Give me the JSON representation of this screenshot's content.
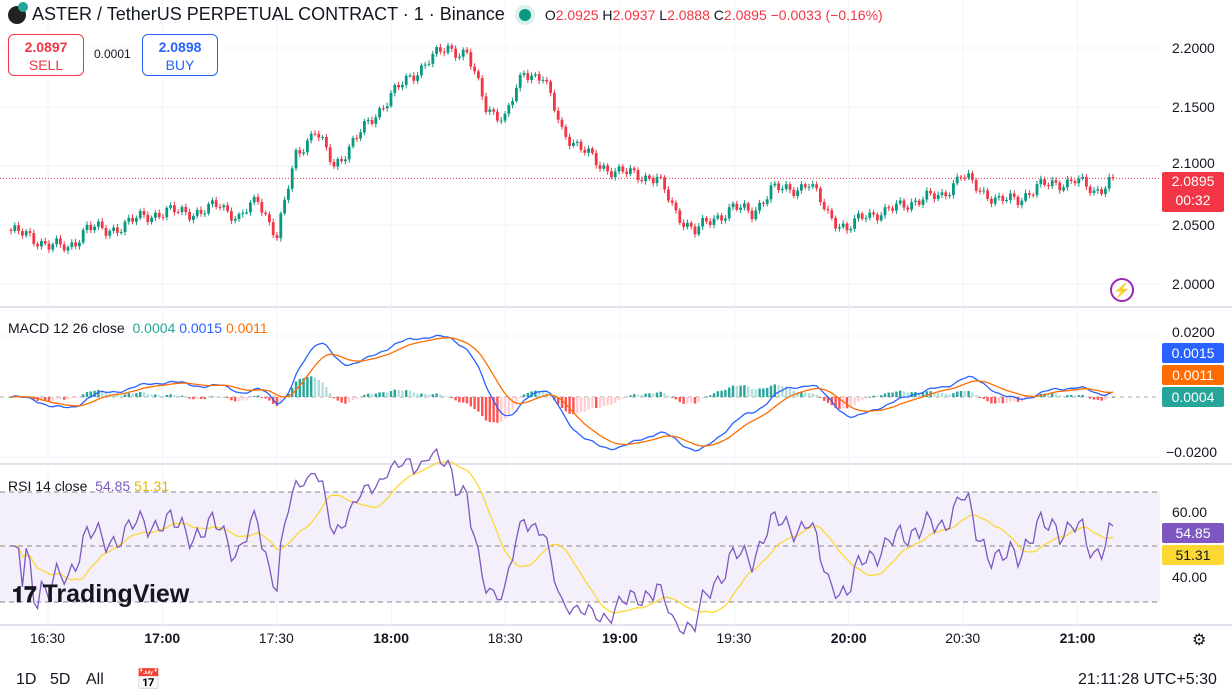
{
  "header": {
    "symbol": "ASTER / TetherUS PERPETUAL CONTRACT · 1 · Binance",
    "o_label": "O",
    "o": "2.0925",
    "h_label": "H",
    "h": "2.0937",
    "l_label": "L",
    "l": "2.0888",
    "c_label": "C",
    "c": "2.0895",
    "change": "−0.0033 (−0.16%)"
  },
  "trade": {
    "sell_price": "2.0897",
    "sell_label": "SELL",
    "spread": "0.0001",
    "buy_price": "2.0898",
    "buy_label": "BUY"
  },
  "price_badge": {
    "price": "2.0895",
    "countdown": "00:32"
  },
  "macd_legend": {
    "name": "MACD 12 26 close",
    "hist": "0.0004",
    "macd": "0.0015",
    "signal": "0.0011"
  },
  "rsi_legend": {
    "name": "RSI 14 close",
    "rsi": "54.85",
    "ma": "51.31"
  },
  "watermark": "TradingView",
  "bottom": {
    "r1": "1D",
    "r2": "5D",
    "r3": "All",
    "clock": "21:11:28 UTC+5:30"
  },
  "colors": {
    "up": "#089981",
    "down": "#f23645",
    "macd": "#2962ff",
    "signal": "#ff6d00",
    "rsi": "#7e57c2",
    "rsi_ma": "#fdd835"
  },
  "chart_data": {
    "type": "candlestick",
    "title": "ASTER / TetherUS PERPETUAL CONTRACT · 1 · Binance",
    "price_ticks": [
      "2.2000",
      "2.1500",
      "2.1000",
      "2.0500",
      "2.0000"
    ],
    "price_ylim": [
      2.0,
      2.2
    ],
    "macd_ticks": [
      "0.0200",
      "−0.0200"
    ],
    "rsi_ticks": [
      "60.00",
      "40.00"
    ],
    "x_ticks": [
      "16:30",
      "17:00",
      "17:30",
      "18:00",
      "18:30",
      "19:00",
      "19:30",
      "20:00",
      "20:30",
      "21:00"
    ],
    "x_start": "16:20",
    "x_step_min": 5,
    "closes_5min": [
      2.045,
      2.04,
      2.033,
      2.03,
      2.048,
      2.045,
      2.05,
      2.058,
      2.06,
      2.062,
      2.06,
      2.068,
      2.055,
      2.072,
      2.04,
      2.11,
      2.13,
      2.1,
      2.12,
      2.14,
      2.16,
      2.175,
      2.19,
      2.2,
      2.195,
      2.15,
      2.14,
      2.18,
      2.175,
      2.13,
      2.115,
      2.1,
      2.095,
      2.092,
      2.09,
      2.06,
      2.045,
      2.055,
      2.065,
      2.06,
      2.08,
      2.08,
      2.085,
      2.06,
      2.045,
      2.06,
      2.06,
      2.068,
      2.072,
      2.075,
      2.092,
      2.08,
      2.07,
      2.072,
      2.082,
      2.085,
      2.088,
      2.078,
      2.0895
    ]
  }
}
